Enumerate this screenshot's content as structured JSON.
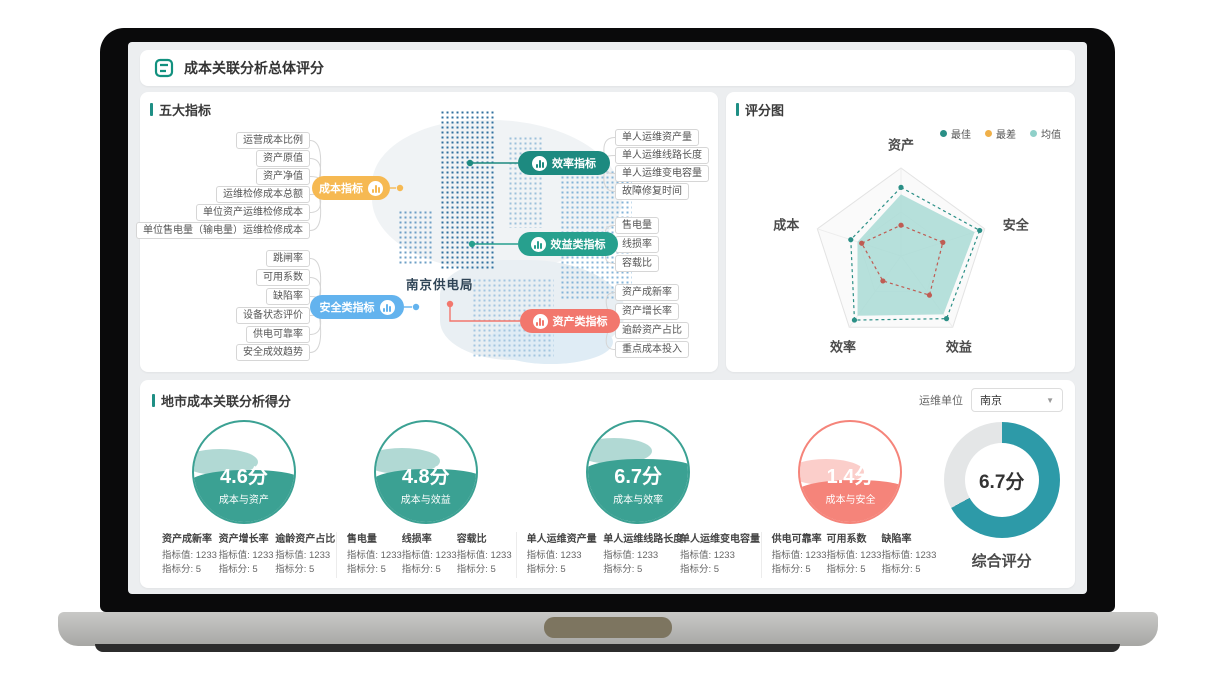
{
  "app": {
    "title": "成本关联分析总体评分"
  },
  "panels": {
    "indicators": {
      "title": "五大指标"
    },
    "score_chart": {
      "title": "评分图"
    },
    "city_score": {
      "title": "地市成本关联分析得分"
    }
  },
  "mindmap": {
    "center_label": "南京供电局",
    "groups": [
      {
        "label": "成本指标",
        "color": "#f6b952",
        "children": [
          "运营成本比例",
          "资产原值",
          "资产净值",
          "运维检修成本总额",
          "单位资产运维检修成本",
          "单位售电量（输电量）运维检修成本"
        ]
      },
      {
        "label": "效率指标",
        "color": "#1d8a80",
        "children": [
          "单人运维资产量",
          "单人运维线路长度",
          "单人运维变电容量",
          "故障修复时间"
        ]
      },
      {
        "label": "效益类指标",
        "color": "#27a08e",
        "children": [
          "售电量",
          "线损率",
          "容载比"
        ]
      },
      {
        "label": "安全类指标",
        "color": "#63b3ee",
        "children": [
          "跳闸率",
          "可用系数",
          "缺陷率",
          "设备状态评价",
          "供电可靠率",
          "安全成效趋势"
        ]
      },
      {
        "label": "资产类指标",
        "color": "#f2776d",
        "children": [
          "资产成新率",
          "资产增长率",
          "逾龄资产占比",
          "重点成本投入"
        ]
      }
    ]
  },
  "chart_data": {
    "type": "radar",
    "title": "评分图",
    "categories": [
      "资产",
      "安全",
      "效益",
      "效率",
      "成本"
    ],
    "max": 10,
    "grid": "pentagon",
    "legend_position": "top-right",
    "series": [
      {
        "name": "最佳",
        "color": "#2a8f86",
        "style": "dashed-dots",
        "values": [
          7.8,
          9.4,
          8.8,
          9.0,
          6.0
        ]
      },
      {
        "name": "最差",
        "color": "#bf5c53",
        "style": "dashed-dots",
        "values": [
          3.5,
          5.0,
          5.5,
          3.5,
          4.7
        ]
      },
      {
        "name": "均值",
        "color": "#a5dad3",
        "style": "filled",
        "values": [
          7.0,
          8.8,
          8.2,
          8.4,
          5.2
        ]
      }
    ],
    "legend": [
      {
        "label": "最佳",
        "color": "#2a8f86"
      },
      {
        "label": "最差",
        "color": "#f0b049"
      },
      {
        "label": "均值",
        "color": "#8fd0c9"
      }
    ]
  },
  "gauges": [
    {
      "score": "4.6分",
      "label": "成本与资产",
      "color": "#3ba193",
      "fill_percent": 52
    },
    {
      "score": "4.8分",
      "label": "成本与效益",
      "color": "#3ba193",
      "fill_percent": 53
    },
    {
      "score": "6.7分",
      "label": "成本与效率",
      "color": "#3ba193",
      "fill_percent": 63
    },
    {
      "score": "1.4分",
      "label": "成本与安全",
      "color": "#f5847a",
      "fill_percent": 42
    }
  ],
  "overall": {
    "score": "6.7分",
    "label": "综合评分",
    "percent": 67,
    "color": "#2d9aa8",
    "track_color": "#e4e6e7"
  },
  "filter": {
    "label": "运维单位",
    "value": "南京"
  },
  "stats": {
    "groups": [
      {
        "items": [
          {
            "name": "资产成新率",
            "value_text": "指标值: 1233",
            "score_text": "指标分: 5"
          },
          {
            "name": "资产增长率",
            "value_text": "指标值: 1233",
            "score_text": "指标分: 5"
          },
          {
            "name": "逾龄资产占比",
            "value_text": "指标值: 1233",
            "score_text": "指标分: 5"
          }
        ]
      },
      {
        "items": [
          {
            "name": "售电量",
            "value_text": "指标值: 1233",
            "score_text": "指标分: 5"
          },
          {
            "name": "线损率",
            "value_text": "指标值: 1233",
            "score_text": "指标分: 5"
          },
          {
            "name": "容载比",
            "value_text": "指标值: 1233",
            "score_text": "指标分: 5"
          }
        ]
      },
      {
        "items": [
          {
            "name": "单人运维资产量",
            "value_text": "指标值: 1233",
            "score_text": "指标分: 5"
          },
          {
            "name": "单人运维线路长度",
            "value_text": "指标值: 1233",
            "score_text": "指标分: 5"
          },
          {
            "name": "单人运维变电容量",
            "value_text": "指标值: 1233",
            "score_text": "指标分: 5"
          }
        ]
      },
      {
        "items": [
          {
            "name": "供电可靠率",
            "value_text": "指标值: 1233",
            "score_text": "指标分: 5"
          },
          {
            "name": "可用系数",
            "value_text": "指标值: 1233",
            "score_text": "指标分: 5"
          },
          {
            "name": "缺陷率",
            "value_text": "指标值: 1233",
            "score_text": "指标分: 5"
          }
        ]
      }
    ]
  }
}
